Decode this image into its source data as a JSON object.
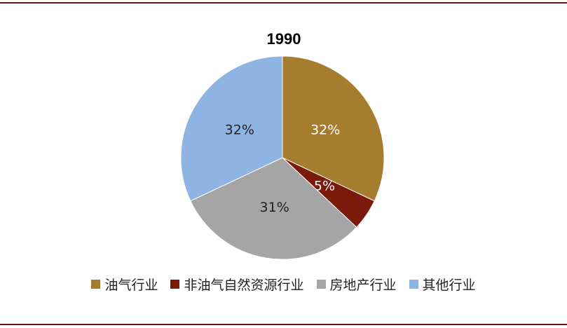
{
  "chart_data": {
    "type": "pie",
    "title": "1990",
    "categories": [
      "油气行业",
      "非油气自然资源行业",
      "房地产行业",
      "其他行业"
    ],
    "values": [
      32,
      5,
      31,
      32
    ],
    "value_labels": [
      "32%",
      "5%",
      "31%",
      "32%"
    ],
    "colors": [
      "#a67c2e",
      "#7b1a0a",
      "#a5a5a5",
      "#8eb4e3"
    ],
    "legend": "bottom"
  }
}
